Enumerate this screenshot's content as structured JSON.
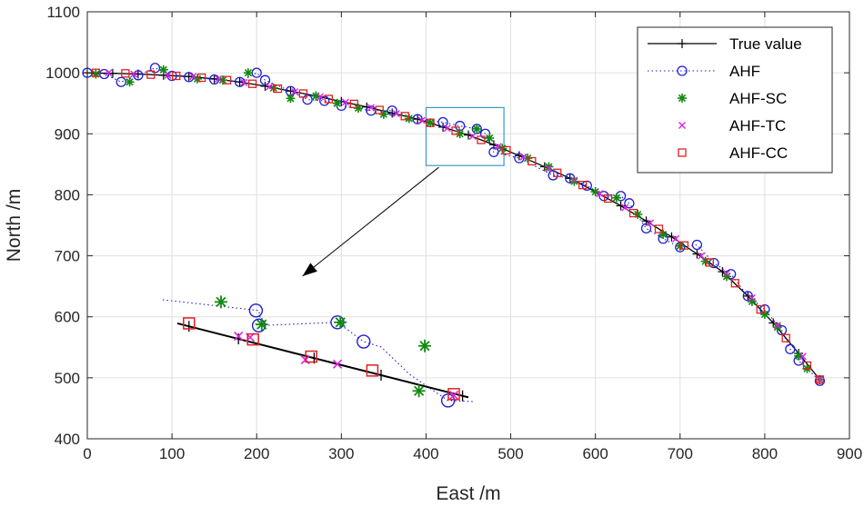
{
  "chart_data": {
    "type": "line",
    "title": "",
    "xlabel": "East /m",
    "ylabel": "North /m",
    "xlim": [
      0,
      900
    ],
    "ylim": [
      400,
      1100
    ],
    "xticks": [
      0,
      100,
      200,
      300,
      400,
      500,
      600,
      700,
      800,
      900
    ],
    "yticks": [
      400,
      500,
      600,
      700,
      800,
      900,
      1000,
      1100
    ],
    "grid": true,
    "legend_position": "top-right",
    "colors": {
      "true_value": "#000000",
      "ahf": "#1f1fd6",
      "ahf_sc": "#108a10",
      "ahf_tc": "#e020e0",
      "ahf_cc": "#e02020",
      "zoom_box": "#3d99c9",
      "grid": "#e0e0e0"
    },
    "series": [
      {
        "name": "True value",
        "style": "line-plus",
        "points": [
          [
            0,
            1000
          ],
          [
            30,
            999
          ],
          [
            60,
            998
          ],
          [
            90,
            996
          ],
          [
            120,
            994
          ],
          [
            150,
            990
          ],
          [
            180,
            985
          ],
          [
            210,
            978
          ],
          [
            240,
            970
          ],
          [
            270,
            962
          ],
          [
            300,
            953
          ],
          [
            330,
            944
          ],
          [
            360,
            934
          ],
          [
            390,
            924
          ],
          [
            420,
            911
          ],
          [
            450,
            898
          ],
          [
            480,
            882
          ],
          [
            510,
            864
          ],
          [
            540,
            846
          ],
          [
            570,
            827
          ],
          [
            600,
            805
          ],
          [
            630,
            782
          ],
          [
            660,
            757
          ],
          [
            690,
            731
          ],
          [
            720,
            703
          ],
          [
            750,
            674
          ],
          [
            780,
            634
          ],
          [
            810,
            590
          ],
          [
            840,
            540
          ],
          [
            865,
            497
          ]
        ]
      },
      {
        "name": "AHF",
        "style": "dotted-circle",
        "points": [
          [
            0,
            1000
          ],
          [
            20,
            998
          ],
          [
            40,
            985
          ],
          [
            60,
            996
          ],
          [
            80,
            1008
          ],
          [
            100,
            995
          ],
          [
            120,
            993
          ],
          [
            150,
            989
          ],
          [
            180,
            985
          ],
          [
            200,
            1000
          ],
          [
            210,
            988
          ],
          [
            240,
            970
          ],
          [
            260,
            956
          ],
          [
            280,
            954
          ],
          [
            300,
            946
          ],
          [
            335,
            938
          ],
          [
            360,
            938
          ],
          [
            390,
            924
          ],
          [
            420,
            919
          ],
          [
            440,
            913
          ],
          [
            460,
            908
          ],
          [
            470,
            900
          ],
          [
            480,
            870
          ],
          [
            510,
            860
          ],
          [
            550,
            832
          ],
          [
            570,
            827
          ],
          [
            590,
            815
          ],
          [
            610,
            798
          ],
          [
            630,
            798
          ],
          [
            640,
            786
          ],
          [
            660,
            745
          ],
          [
            680,
            728
          ],
          [
            700,
            714
          ],
          [
            720,
            718
          ],
          [
            740,
            688
          ],
          [
            760,
            670
          ],
          [
            780,
            634
          ],
          [
            800,
            612
          ],
          [
            820,
            578
          ],
          [
            830,
            547
          ],
          [
            840,
            528
          ],
          [
            865,
            495
          ]
        ]
      },
      {
        "name": "AHF-SC",
        "style": "star",
        "points": [
          [
            10,
            998
          ],
          [
            50,
            985
          ],
          [
            90,
            1005
          ],
          [
            130,
            990
          ],
          [
            160,
            988
          ],
          [
            190,
            1000
          ],
          [
            220,
            975
          ],
          [
            240,
            958
          ],
          [
            270,
            962
          ],
          [
            295,
            950
          ],
          [
            320,
            942
          ],
          [
            350,
            932
          ],
          [
            380,
            925
          ],
          [
            405,
            918
          ],
          [
            440,
            900
          ],
          [
            460,
            908
          ],
          [
            475,
            893
          ],
          [
            490,
            876
          ],
          [
            520,
            860
          ],
          [
            545,
            846
          ],
          [
            575,
            822
          ],
          [
            600,
            805
          ],
          [
            625,
            795
          ],
          [
            650,
            768
          ],
          [
            680,
            735
          ],
          [
            700,
            716
          ],
          [
            730,
            691
          ],
          [
            755,
            666
          ],
          [
            785,
            625
          ],
          [
            800,
            604
          ],
          [
            815,
            583
          ],
          [
            840,
            536
          ],
          [
            850,
            515
          ],
          [
            865,
            497
          ]
        ]
      },
      {
        "name": "AHF-TC",
        "style": "x",
        "points": [
          [
            25,
            1000
          ],
          [
            55,
            998
          ],
          [
            95,
            996
          ],
          [
            125,
            994
          ],
          [
            155,
            990
          ],
          [
            185,
            984
          ],
          [
            215,
            977
          ],
          [
            245,
            969
          ],
          [
            275,
            961
          ],
          [
            305,
            952
          ],
          [
            335,
            943
          ],
          [
            365,
            933
          ],
          [
            395,
            922
          ],
          [
            425,
            909
          ],
          [
            455,
            896
          ],
          [
            485,
            879
          ],
          [
            515,
            862
          ],
          [
            545,
            843
          ],
          [
            575,
            824
          ],
          [
            605,
            802
          ],
          [
            635,
            779
          ],
          [
            665,
            754
          ],
          [
            695,
            728
          ],
          [
            725,
            700
          ],
          [
            755,
            671
          ],
          [
            785,
            631
          ],
          [
            815,
            586
          ],
          [
            845,
            535
          ],
          [
            865,
            497
          ]
        ]
      },
      {
        "name": "AHF-CC",
        "style": "square",
        "points": [
          [
            10,
            1000
          ],
          [
            45,
            999
          ],
          [
            75,
            997
          ],
          [
            105,
            995
          ],
          [
            135,
            992
          ],
          [
            165,
            988
          ],
          [
            195,
            982
          ],
          [
            225,
            974
          ],
          [
            255,
            966
          ],
          [
            285,
            957
          ],
          [
            315,
            949
          ],
          [
            345,
            939
          ],
          [
            375,
            929
          ],
          [
            405,
            918
          ],
          [
            435,
            905
          ],
          [
            465,
            890
          ],
          [
            495,
            873
          ],
          [
            525,
            855
          ],
          [
            555,
            836
          ],
          [
            585,
            816
          ],
          [
            615,
            794
          ],
          [
            645,
            770
          ],
          [
            675,
            744
          ],
          [
            705,
            717
          ],
          [
            735,
            689
          ],
          [
            765,
            655
          ],
          [
            795,
            612
          ],
          [
            825,
            565
          ],
          [
            850,
            520
          ],
          [
            865,
            497
          ]
        ]
      }
    ],
    "zoom_box": {
      "x_range": [
        400,
        492
      ],
      "y_range": [
        848,
        943
      ]
    },
    "inset": {
      "description": "magnified view of the boxed region",
      "true_line": [
        [
          0.0,
          0.22
        ],
        [
          1.0,
          0.91
        ]
      ],
      "true_ticks": [
        0.04,
        0.21,
        0.47,
        0.7,
        0.98
      ],
      "ahf": [
        [
          0.27,
          0.1
        ],
        [
          0.28,
          0.24
        ],
        [
          0.55,
          0.21
        ],
        [
          0.64,
          0.39
        ],
        [
          0.93,
          0.94
        ]
      ],
      "ahf_dotted_path": [
        [
          -0.05,
          0.0
        ],
        [
          0.28,
          0.1
        ],
        [
          0.29,
          0.24
        ],
        [
          0.55,
          0.21
        ],
        [
          0.64,
          0.39
        ],
        [
          0.7,
          0.44
        ],
        [
          0.8,
          0.7
        ],
        [
          0.93,
          0.94
        ],
        [
          1.02,
          0.95
        ]
      ],
      "ahf_sc": [
        [
          0.15,
          0.02
        ],
        [
          0.29,
          0.23
        ],
        [
          0.56,
          0.21
        ],
        [
          0.85,
          0.43
        ],
        [
          0.83,
          0.85
        ]
      ],
      "ahf_tc": [
        [
          0.21,
          0.34
        ],
        [
          0.25,
          0.35
        ],
        [
          0.44,
          0.56
        ],
        [
          0.55,
          0.6
        ],
        [
          0.95,
          0.89
        ]
      ],
      "ahf_cc": [
        [
          0.04,
          0.22
        ],
        [
          0.26,
          0.37
        ],
        [
          0.46,
          0.53
        ],
        [
          0.67,
          0.66
        ],
        [
          0.95,
          0.88
        ]
      ]
    }
  }
}
